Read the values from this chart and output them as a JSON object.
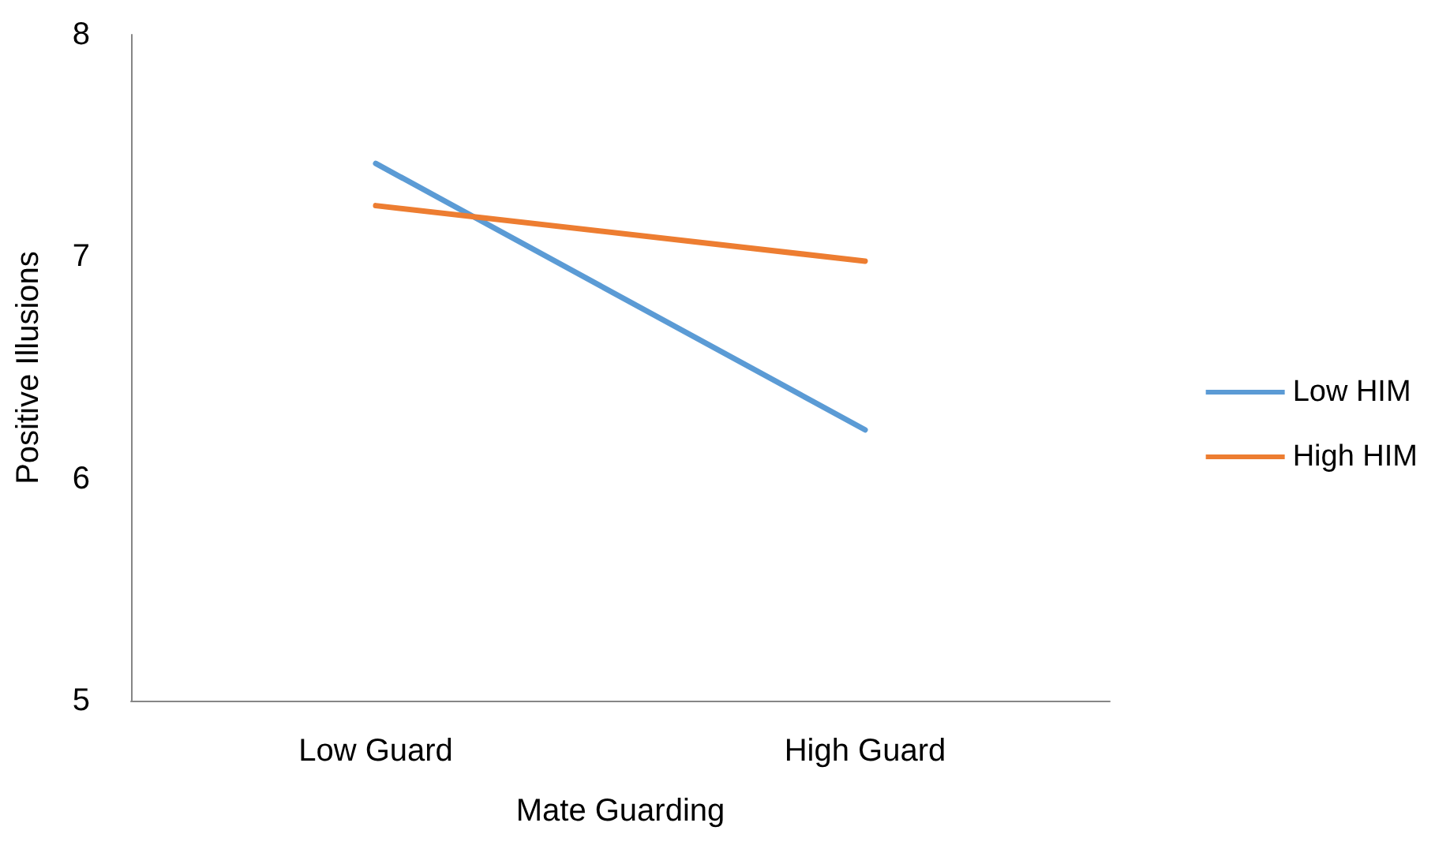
{
  "chart_data": {
    "type": "line",
    "xlabel": "Mate Guarding",
    "ylabel": "Positive Illusions",
    "categories": [
      "Low Guard",
      "High Guard"
    ],
    "series": [
      {
        "name": "Low HIM",
        "color": "#5b9bd5",
        "values": [
          7.42,
          6.22
        ]
      },
      {
        "name": "High HIM",
        "color": "#ed7d31",
        "values": [
          7.23,
          6.98
        ]
      }
    ],
    "ylim": [
      5,
      8
    ],
    "yticks": [
      5,
      6,
      7,
      8
    ],
    "grid": false,
    "legend": "right",
    "marker": "none",
    "line_style": "solid"
  }
}
